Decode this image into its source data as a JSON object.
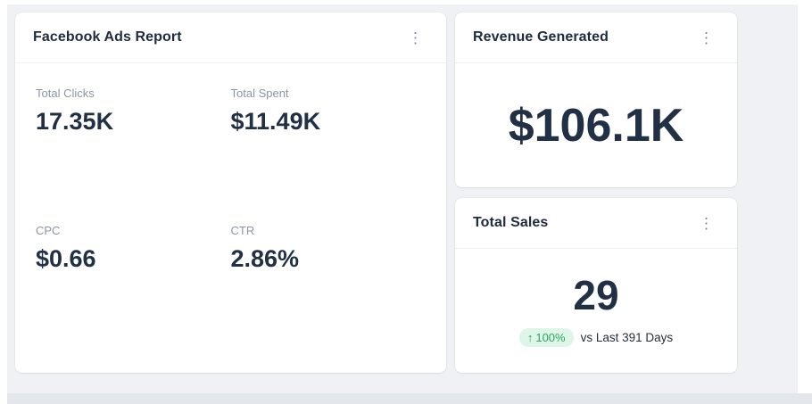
{
  "colors": {
    "page_bg": "#eff1f5",
    "card_bg": "#ffffff",
    "title_text": "#1f2b3e",
    "value_text": "#223046",
    "label_text": "#8b95a5",
    "positive_pill_bg": "#ddf6e8",
    "positive_pill_text": "#2da562"
  },
  "icons": {
    "kebab_menu": "⋮",
    "arrow_up": "↑"
  },
  "cards": {
    "facebook": {
      "title": "Facebook Ads Report",
      "metrics": [
        {
          "label": "Total Clicks",
          "value": "17.35K"
        },
        {
          "label": "Total Spent",
          "value": "$11.49K"
        },
        {
          "label": "CPC",
          "value": "$0.66"
        },
        {
          "label": "CTR",
          "value": "2.86%"
        }
      ]
    },
    "revenue": {
      "title": "Revenue Generated",
      "value": "$106.1K"
    },
    "sales": {
      "title": "Total Sales",
      "value": "29",
      "change_percent": "100%",
      "compare_text": "vs Last 391 Days"
    }
  }
}
